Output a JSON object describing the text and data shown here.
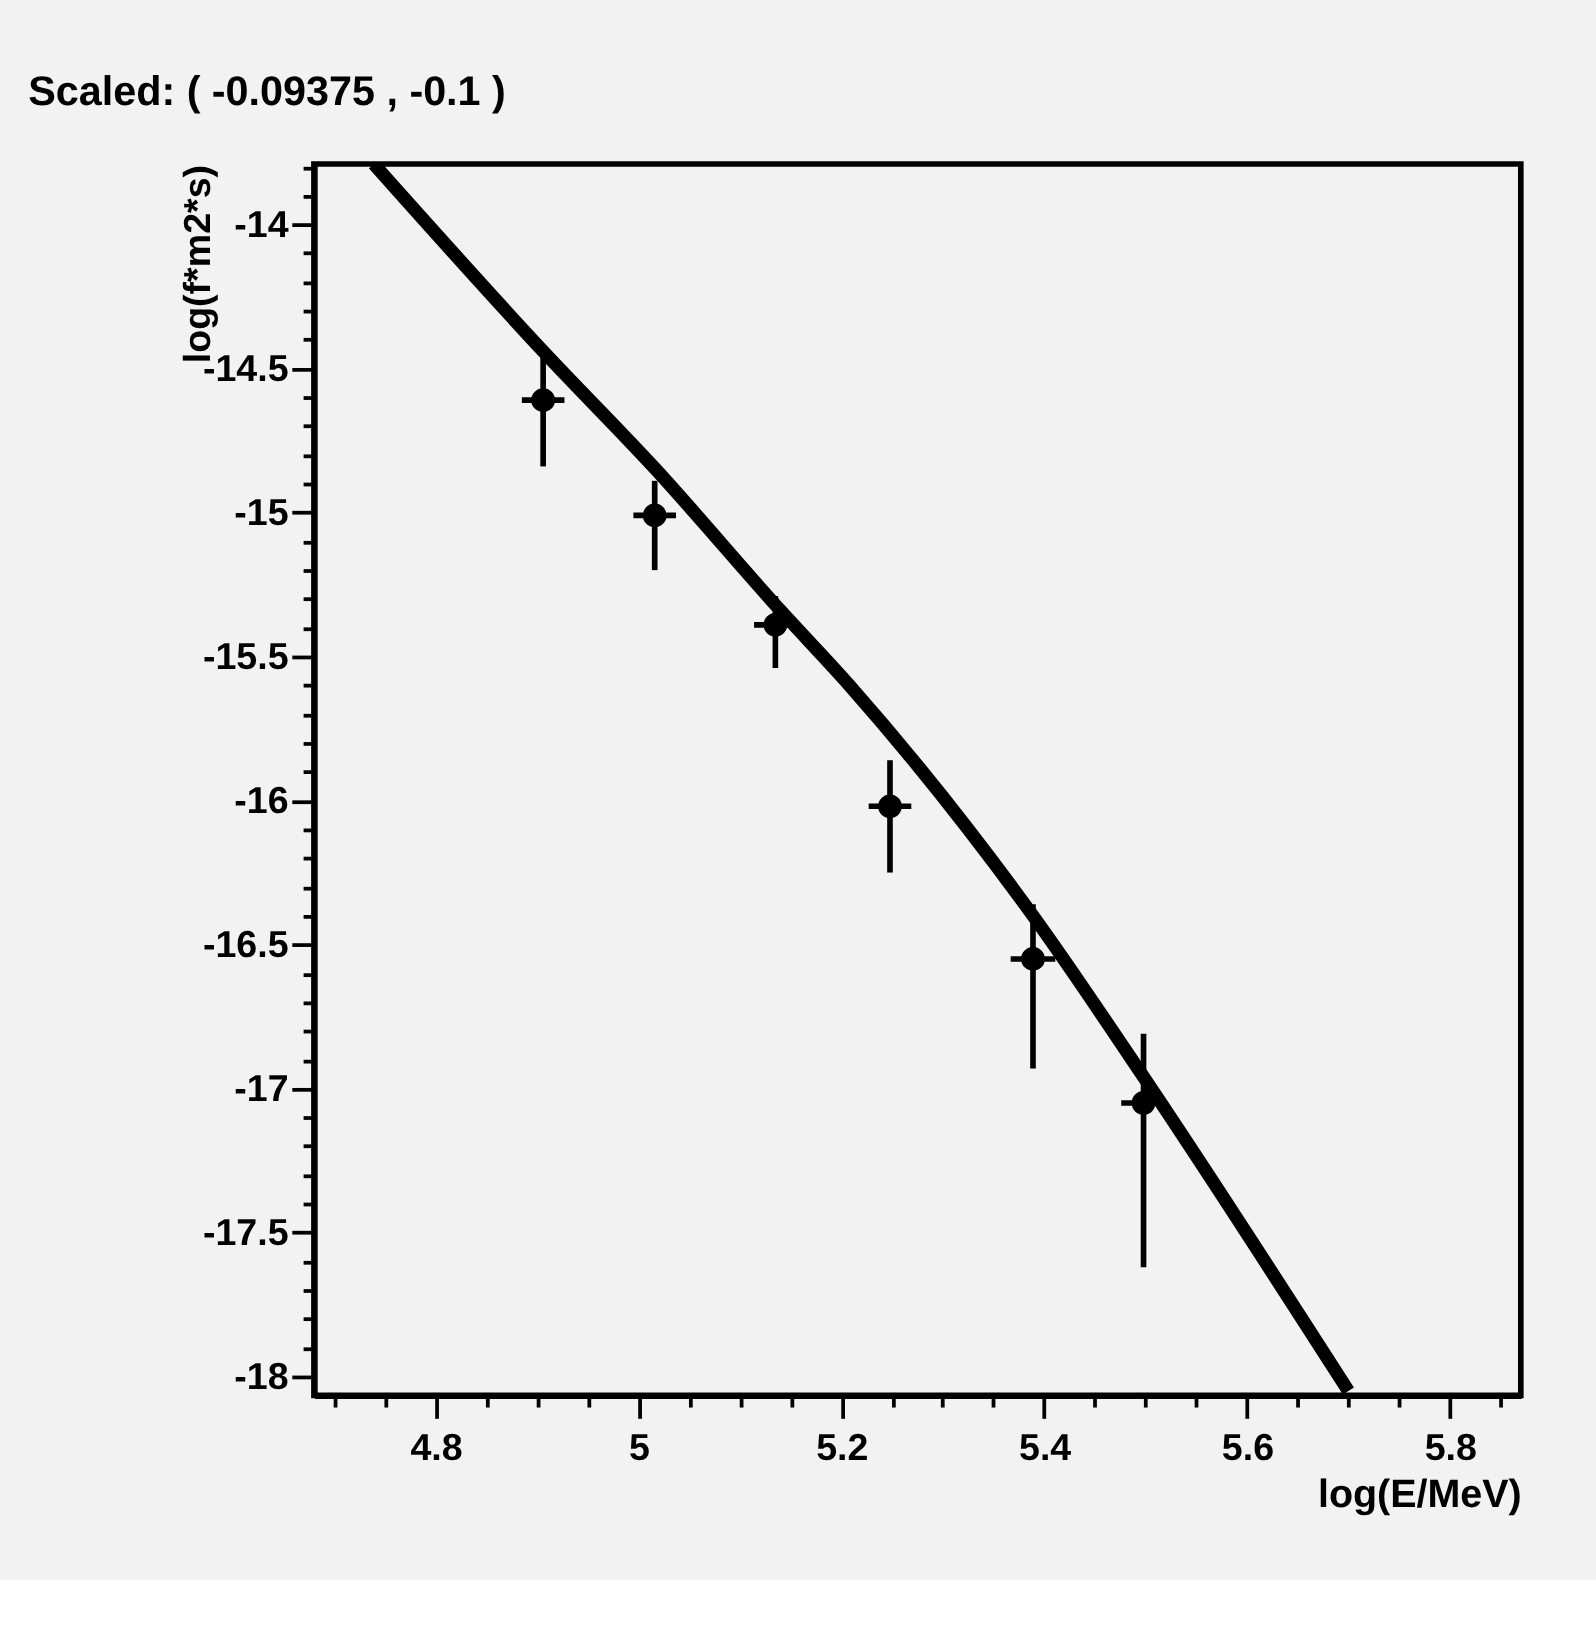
{
  "chart_data": {
    "type": "scatter",
    "title": "Scaled: ( -0.09375 ,     -0.1 )",
    "xlabel": "log(E/MeV)",
    "ylabel": "log(f*m2*s)",
    "xlim": [
      4.68,
      5.87
    ],
    "ylim": [
      -18.065,
      -13.79
    ],
    "xticks": [
      {
        "value": 4.7,
        "label": null
      },
      {
        "value": 4.75,
        "label": null
      },
      4.8,
      {
        "value": 4.85,
        "label": null
      },
      {
        "value": 4.9,
        "label": null
      },
      {
        "value": 4.95,
        "label": null
      },
      5,
      {
        "value": 5.05,
        "label": null
      },
      {
        "value": 5.1,
        "label": null
      },
      {
        "value": 5.15,
        "label": null
      },
      5.2,
      {
        "value": 5.25,
        "label": null
      },
      {
        "value": 5.3,
        "label": null
      },
      {
        "value": 5.35,
        "label": null
      },
      5.4,
      {
        "value": 5.45,
        "label": null
      },
      {
        "value": 5.5,
        "label": null
      },
      {
        "value": 5.55,
        "label": null
      },
      5.6,
      {
        "value": 5.65,
        "label": null
      },
      {
        "value": 5.7,
        "label": null
      },
      {
        "value": 5.75,
        "label": null
      },
      5.8,
      {
        "value": 5.85,
        "label": null
      }
    ],
    "yticks": [
      -18,
      {
        "value": -17.9,
        "label": null
      },
      {
        "value": -17.8,
        "label": null
      },
      {
        "value": -17.7,
        "label": null
      },
      {
        "value": -17.6,
        "label": null
      },
      -17.5,
      {
        "value": -17.4,
        "label": null
      },
      {
        "value": -17.3,
        "label": null
      },
      {
        "value": -17.2,
        "label": null
      },
      {
        "value": -17.1,
        "label": null
      },
      -17,
      {
        "value": -16.9,
        "label": null
      },
      {
        "value": -16.8,
        "label": null
      },
      {
        "value": -16.7,
        "label": null
      },
      {
        "value": -16.6,
        "label": null
      },
      -16.5,
      {
        "value": -16.4,
        "label": null
      },
      {
        "value": -16.3,
        "label": null
      },
      {
        "value": -16.2,
        "label": null
      },
      {
        "value": -16.1,
        "label": null
      },
      -16,
      {
        "value": -15.9,
        "label": null
      },
      {
        "value": -15.8,
        "label": null
      },
      {
        "value": -15.7,
        "label": null
      },
      {
        "value": -15.6,
        "label": null
      },
      -15.5,
      {
        "value": -15.4,
        "label": null
      },
      {
        "value": -15.3,
        "label": null
      },
      {
        "value": -15.2,
        "label": null
      },
      {
        "value": -15.1,
        "label": null
      },
      -15,
      {
        "value": -14.9,
        "label": null
      },
      {
        "value": -14.8,
        "label": null
      },
      {
        "value": -14.7,
        "label": null
      },
      {
        "value": -14.6,
        "label": null
      },
      -14.5,
      {
        "value": -14.4,
        "label": null
      },
      {
        "value": -14.3,
        "label": null
      },
      {
        "value": -14.2,
        "label": null
      },
      {
        "value": -14.1,
        "label": null
      },
      -14,
      {
        "value": -13.9,
        "label": null
      },
      {
        "value": -13.8,
        "label": null
      }
    ],
    "grid": false,
    "marker": "circle",
    "series": [
      {
        "color": "#000000",
        "x": [
          4.906,
          5.016,
          5.135,
          5.248,
          5.389,
          5.498
        ],
        "values": [
          -14.61,
          -15.01,
          -15.39,
          -16.02,
          -16.55,
          -17.05
        ],
        "errors": [
          [
            -14.84,
            -14.46
          ],
          [
            -15.2,
            -14.89
          ],
          [
            -15.54,
            -15.29
          ],
          [
            -16.25,
            -15.86
          ],
          [
            -16.93,
            -16.36
          ],
          [
            -17.62,
            -16.81
          ]
        ],
        "xerrors": [
          0.021,
          0.021,
          0.021,
          0.021,
          0.022,
          0.022
        ]
      },
      {
        "type": "line",
        "color": "#000000",
        "line_style": "solid",
        "marker": "none",
        "x": [
          4.739,
          4.906,
          5.017,
          5.14,
          5.208,
          5.389,
          5.5,
          5.7
        ],
        "values": [
          -13.79,
          -14.44,
          -14.85,
          -15.34,
          -15.6,
          -16.4,
          -16.97,
          -18.05
        ]
      }
    ]
  }
}
